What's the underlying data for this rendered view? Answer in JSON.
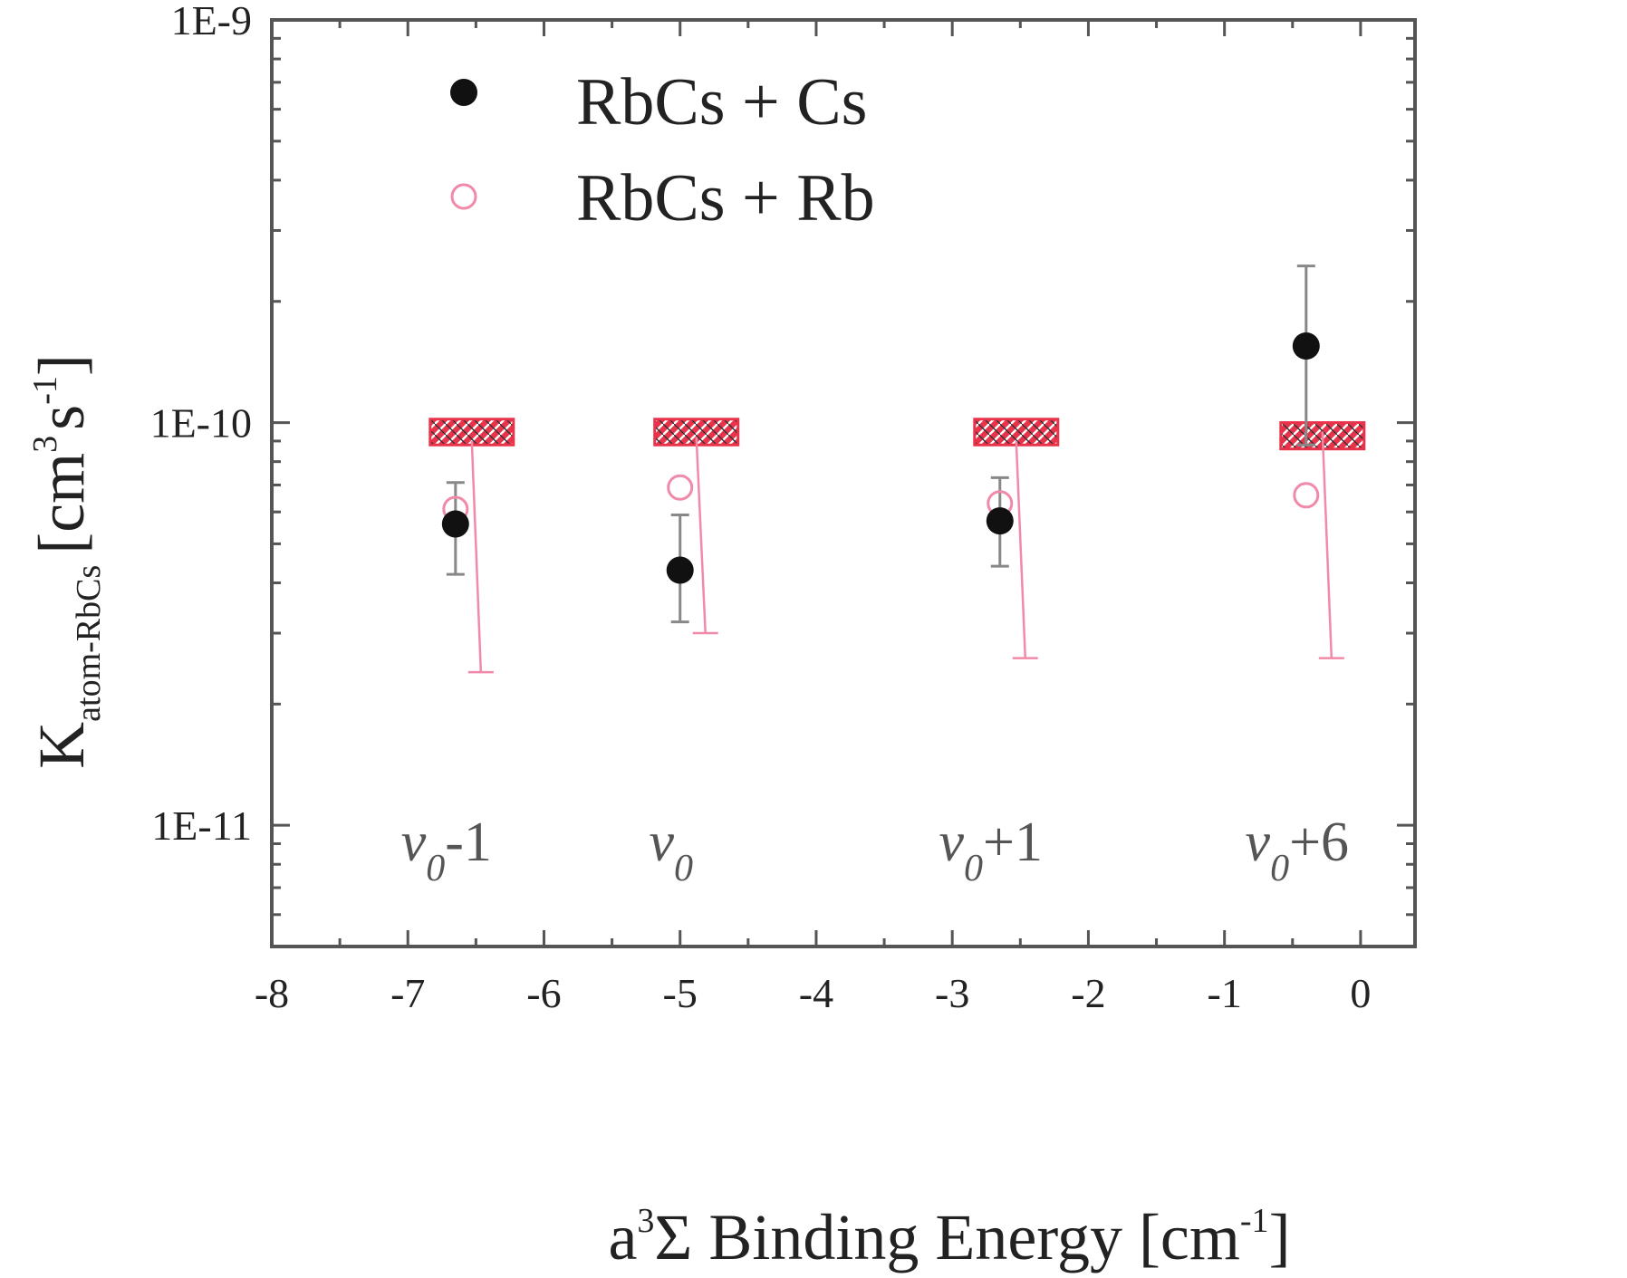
{
  "chart_data": {
    "type": "scatter",
    "xlabel": {
      "prefix": "a",
      "sup": "3",
      "main": "Σ Binding Energy [cm",
      "sup2": "-1",
      "suffix": "]"
    },
    "ylabel": {
      "main": "K",
      "sub": "atom-RbCs",
      "unit_open": "[cm",
      "sup1": "3",
      "mid": "s",
      "sup2": "-1",
      "unit_close": "]"
    },
    "xlim": [
      -8,
      0.4
    ],
    "ylim": [
      5e-12,
      1e-09
    ],
    "yscale": "log",
    "xticks": [
      -8,
      -7,
      -6,
      -5,
      -4,
      -3,
      -2,
      -1,
      0
    ],
    "xtick_labels": [
      "-8",
      "-7",
      "-6",
      "-5",
      "-4",
      "-3",
      "-2",
      "-1",
      "0"
    ],
    "yticks": [
      1e-09,
      1e-10,
      1e-11
    ],
    "ytick_labels": [
      "1E-9",
      "1E-10",
      "1E-11"
    ],
    "legend": {
      "placement": "top-left",
      "entries": [
        "RbCs + Cs",
        "RbCs + Rb"
      ]
    },
    "series": [
      {
        "name": "RbCs + Cs",
        "marker": "filled-circle",
        "color": "#111111",
        "points": [
          {
            "x": -6.65,
            "y": 5.6e-11,
            "ylow": 4.2e-11,
            "yhigh": 7.1e-11
          },
          {
            "x": -5.0,
            "y": 4.3e-11,
            "ylow": 3.2e-11,
            "yhigh": 5.9e-11
          },
          {
            "x": -2.65,
            "y": 5.7e-11,
            "ylow": 4.4e-11,
            "yhigh": 7.3e-11
          },
          {
            "x": -0.4,
            "y": 1.55e-10,
            "ylow": 8.8e-11,
            "yhigh": 2.45e-10
          }
        ]
      },
      {
        "name": "RbCs + Rb",
        "marker": "open-circle",
        "color": "#f08aa8",
        "points": [
          {
            "x": -6.65,
            "y": 6.1e-11,
            "ylow": 2.4e-11,
            "yhigh": 9e-11
          },
          {
            "x": -5.0,
            "y": 6.9e-11,
            "ylow": 3e-11,
            "yhigh": 9.2e-11
          },
          {
            "x": -2.65,
            "y": 6.3e-11,
            "ylow": 2.6e-11,
            "yhigh": 9e-11
          },
          {
            "x": -0.4,
            "y": 6.6e-11,
            "ylow": 2.6e-11,
            "yhigh": 9.5e-11
          }
        ]
      }
    ],
    "bands": [
      {
        "x": -6.65,
        "ylow": 8.8e-11,
        "yhigh": 1.02e-10
      },
      {
        "x": -5.0,
        "ylow": 8.8e-11,
        "yhigh": 1.02e-10
      },
      {
        "x": -2.65,
        "ylow": 8.8e-11,
        "yhigh": 1.02e-10
      },
      {
        "x": -0.4,
        "ylow": 8.6e-11,
        "yhigh": 1e-10
      }
    ],
    "band_color": "#e8334a",
    "annotations": [
      {
        "main": "v",
        "sub": "0",
        "suffix": "-1",
        "x": -6.65
      },
      {
        "main": "v",
        "sub": "0",
        "suffix": "",
        "x": -5.0
      },
      {
        "main": "v",
        "sub": "0",
        "suffix": "+1",
        "x": -2.65
      },
      {
        "main": "v",
        "sub": "0",
        "suffix": "+6",
        "x": -0.4
      }
    ],
    "grid": false
  }
}
